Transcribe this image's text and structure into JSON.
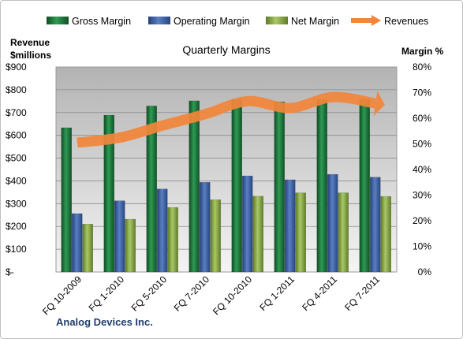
{
  "chart_data": {
    "type": "bar",
    "title": "Quarterly Margins",
    "categories": [
      "FQ 10-2009",
      "FQ 1-2010",
      "FQ 5-2010",
      "FQ 7-2010",
      "FQ 10-2010",
      "FQ 1-2011",
      "FQ 4-2011",
      "FQ 7-2011"
    ],
    "series": [
      {
        "name": "Gross Margin",
        "axis": "right",
        "values": [
          56.3,
          61.2,
          64.8,
          66.8,
          67.3,
          66.4,
          67.4,
          67.3
        ],
        "color": "#1e7a3c"
      },
      {
        "name": "Operating Margin",
        "axis": "right",
        "values": [
          22.8,
          27.8,
          32.4,
          35.0,
          37.5,
          36.0,
          38.1,
          37.0
        ],
        "color": "#3e62a8"
      },
      {
        "name": "Net Margin",
        "axis": "right",
        "values": [
          18.7,
          20.6,
          25.2,
          28.2,
          29.6,
          30.9,
          30.9,
          29.5
        ],
        "color": "#8db04a"
      },
      {
        "name": "Revenues",
        "axis": "left",
        "type": "line",
        "values": [
          568,
          590,
          643,
          693,
          750,
          720,
          768,
          740
        ],
        "color": "#f2853a"
      }
    ],
    "left_axis": {
      "label_line1": "Revenue",
      "label_line2": "$millions",
      "min": 0,
      "max": 900,
      "step": 100,
      "ticks": [
        "$-",
        "$100",
        "$200",
        "$300",
        "$400",
        "$500",
        "$600",
        "$700",
        "$800",
        "$900"
      ]
    },
    "right_axis": {
      "label": "Margin %",
      "min": 0,
      "max": 80,
      "step": 10,
      "ticks": [
        "0%",
        "10%",
        "20%",
        "30%",
        "40%",
        "50%",
        "60%",
        "70%",
        "80%"
      ]
    },
    "legend_position": "top",
    "grid": true,
    "footer": "Analog Devices Inc."
  }
}
